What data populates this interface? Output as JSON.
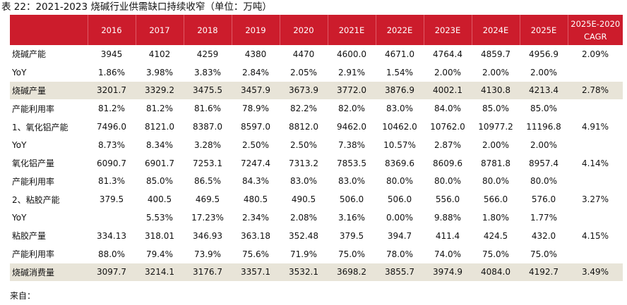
{
  "title": "表 22：2021-2023 烧碱行业供需缺口持续收窄（单位：万吨）",
  "table": {
    "headers": [
      "",
      "2016",
      "2017",
      "2018",
      "2019",
      "2020",
      "2021E",
      "2022E",
      "2023E",
      "2024E",
      "2025E"
    ],
    "cagr_header": [
      "2025E-2020",
      "CAGR"
    ],
    "rows": [
      {
        "label": "烧碱产能",
        "values": [
          "3945",
          "4102",
          "4259",
          "4380",
          "4470",
          "4600.0",
          "4671.0",
          "4764.4",
          "4859.7",
          "4956.9"
        ],
        "cagr": "2.09%",
        "shaded": false
      },
      {
        "label": "YoY",
        "values": [
          "1.86%",
          "3.98%",
          "3.83%",
          "2.84%",
          "2.05%",
          "2.91%",
          "1.54%",
          "2.00%",
          "2.00%",
          "2.00%"
        ],
        "cagr": "",
        "shaded": false
      },
      {
        "label": "烧碱产量",
        "values": [
          "3201.7",
          "3329.2",
          "3475.5",
          "3457.9",
          "3673.9",
          "3772.0",
          "3876.9",
          "4002.1",
          "4130.8",
          "4213.4"
        ],
        "cagr": "2.78%",
        "shaded": true
      },
      {
        "label": "产能利用率",
        "values": [
          "81.2%",
          "81.2%",
          "81.6%",
          "78.9%",
          "82.2%",
          "82.0%",
          "83.0%",
          "84.0%",
          "85.0%",
          "85.0%"
        ],
        "cagr": "",
        "shaded": false
      },
      {
        "label": "1、氧化铝产能",
        "values": [
          "7496.0",
          "8121.0",
          "8387.0",
          "8597.0",
          "8812.0",
          "9462.0",
          "10462.0",
          "10762.0",
          "10977.2",
          "11196.8"
        ],
        "cagr": "4.91%",
        "shaded": false
      },
      {
        "label": "YoY",
        "values": [
          "8.73%",
          "8.34%",
          "3.28%",
          "2.50%",
          "2.50%",
          "7.38%",
          "10.57%",
          "2.87%",
          "2.00%",
          "2.00%"
        ],
        "cagr": "",
        "shaded": false
      },
      {
        "label": "氧化铝产量",
        "values": [
          "6090.7",
          "6901.7",
          "7253.1",
          "7247.4",
          "7313.2",
          "7853.5",
          "8369.6",
          "8609.6",
          "8781.8",
          "8957.4"
        ],
        "cagr": "4.14%",
        "shaded": false
      },
      {
        "label": "产能利用率",
        "values": [
          "81.3%",
          "85.0%",
          "86.5%",
          "84.3%",
          "83.0%",
          "83.0%",
          "80.0%",
          "80.0%",
          "80.0%",
          "80.0%"
        ],
        "cagr": "",
        "shaded": false
      },
      {
        "label": "2、粘胶产能",
        "values": [
          "379.5",
          "400.5",
          "469.5",
          "480.5",
          "490.5",
          "506.0",
          "506.0",
          "556.0",
          "566.0",
          "576.0"
        ],
        "cagr": "3.27%",
        "shaded": false
      },
      {
        "label": "YoY",
        "values": [
          "",
          "5.53%",
          "17.23%",
          "2.34%",
          "2.08%",
          "3.16%",
          "0.00%",
          "9.88%",
          "1.80%",
          "1.77%"
        ],
        "cagr": "",
        "shaded": false
      },
      {
        "label": "粘胶产量",
        "values": [
          "334.13",
          "318.01",
          "346.93",
          "363.18",
          "352.48",
          "379.5",
          "394.7",
          "411.4",
          "424.5",
          "432.0"
        ],
        "cagr": "4.15%",
        "shaded": false
      },
      {
        "label": "产能利用率",
        "values": [
          "88.0%",
          "79.4%",
          "73.9%",
          "75.6%",
          "71.9%",
          "75.0%",
          "78.0%",
          "74.0%",
          "75.0%",
          "75.0%"
        ],
        "cagr": "",
        "shaded": false
      },
      {
        "label": "烧碱消费量",
        "values": [
          "3097.7",
          "3214.1",
          "3176.7",
          "3357.1",
          "3532.1",
          "3698.2",
          "3855.7",
          "3974.9",
          "4084.0",
          "4192.7"
        ],
        "cagr": "3.49%",
        "shaded": true
      }
    ]
  },
  "source": "来自：",
  "colors": {
    "header_bg": "#cc1c2c",
    "header_text": "#ffffff",
    "shade_bg": "#e8e4d8"
  }
}
